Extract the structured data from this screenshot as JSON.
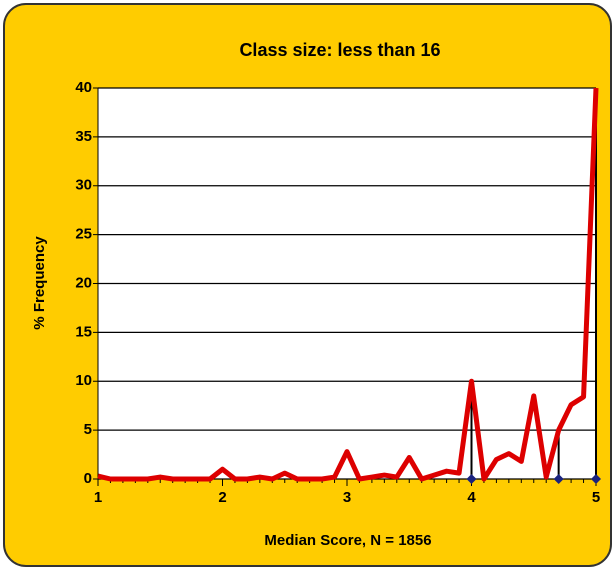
{
  "chart_data": {
    "type": "line",
    "title": "Class size: less than 16",
    "x_label": "Median Score, N = 1856",
    "y_label": "% Frequency",
    "x": [
      1,
      1.1,
      1.2,
      1.3,
      1.4,
      1.5,
      1.6,
      1.7,
      1.8,
      1.9,
      2,
      2.1,
      2.2,
      2.3,
      2.4,
      2.5,
      2.6,
      2.7,
      2.8,
      2.9,
      3,
      3.1,
      3.2,
      3.3,
      3.4,
      3.5,
      3.6,
      3.7,
      3.8,
      3.9,
      4,
      4.1,
      4.2,
      4.3,
      4.4,
      4.5,
      4.6,
      4.7,
      4.8,
      4.9,
      5
    ],
    "series": [
      {
        "color": "#dd0000",
        "values": [
          0.3,
          0,
          0,
          0,
          0,
          0.2,
          0,
          0,
          0,
          0,
          1,
          0,
          0,
          0.2,
          0,
          0.6,
          0,
          0,
          0,
          0.2,
          2.8,
          0,
          0.2,
          0.4,
          0.2,
          2.2,
          0,
          0.4,
          0.8,
          0.6,
          10,
          0,
          2,
          2.6,
          1.8,
          8.5,
          0.2,
          5,
          7.6,
          8.4,
          40
        ]
      }
    ],
    "drop_lines": {
      "x": [
        4,
        4.7,
        5
      ],
      "values": [
        10,
        5,
        40
      ],
      "color": "#000000",
      "marker_color": "#1a237e"
    },
    "xlim": [
      1,
      5
    ],
    "xticks": [
      1,
      2,
      3,
      4,
      5
    ],
    "ylim": [
      0,
      40
    ],
    "yticks": [
      0,
      5,
      10,
      15,
      20,
      25,
      30,
      35,
      40
    ],
    "grid": true
  }
}
